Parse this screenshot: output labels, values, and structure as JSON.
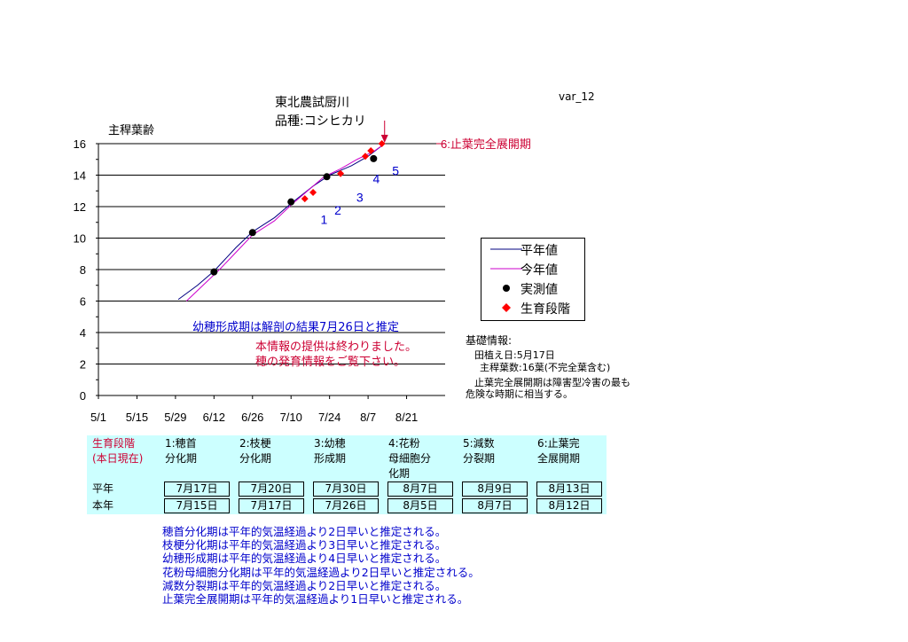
{
  "header": {
    "title_line1": "東北農試厨川",
    "title_line2": "品種:コシヒカリ",
    "var_label": "var_12",
    "y_axis_title": "主稈葉齢"
  },
  "chart_data": {
    "type": "line",
    "y_axis_title": "主稈葉齢",
    "ylim": [
      0,
      16
    ],
    "yticks": [
      0,
      2,
      4,
      6,
      8,
      10,
      12,
      14,
      16
    ],
    "ytick_labels": [
      "0",
      "2",
      "4",
      "6",
      "8",
      "10",
      "12",
      "14",
      "16"
    ],
    "x_tick_labels": [
      "5/1",
      "5/15",
      "5/29",
      "6/12",
      "6/26",
      "7/10",
      "7/24",
      "8/7",
      "8/21"
    ],
    "x_tick_days": [
      0,
      14,
      28,
      42,
      56,
      70,
      84,
      98,
      112
    ],
    "xlim": [
      0,
      126
    ],
    "grid": true,
    "series": [
      {
        "name": "平年値",
        "color": "#000080",
        "style": "line",
        "x": [
          29,
          36,
          42,
          50,
          56,
          64,
          70,
          78,
          84,
          92,
          98,
          104
        ],
        "y": [
          6.1,
          7.0,
          7.9,
          9.4,
          10.4,
          11.3,
          12.2,
          13.3,
          14.0,
          14.6,
          15.2,
          16.0
        ]
      },
      {
        "name": "今年値",
        "color": "#cc00cc",
        "style": "line",
        "x": [
          32,
          38,
          44,
          50,
          56,
          64,
          70,
          76,
          82,
          88,
          94,
          100,
          104
        ],
        "y": [
          6.0,
          7.0,
          8.0,
          9.1,
          10.2,
          11.1,
          12.1,
          13.0,
          13.9,
          14.4,
          15.0,
          15.5,
          16.0
        ]
      },
      {
        "name": "実測値",
        "color": "#000000",
        "style": "marker-circle",
        "x": [
          42,
          56,
          70,
          83,
          100
        ],
        "y": [
          7.85,
          10.35,
          12.3,
          13.9,
          15.05
        ]
      },
      {
        "name": "生育段階",
        "color": "#ff0000",
        "style": "marker-diamond",
        "x": [
          75,
          78,
          88,
          97,
          99,
          103
        ],
        "y": [
          12.5,
          12.9,
          14.1,
          15.2,
          15.55,
          16.0
        ]
      }
    ],
    "stage_numbers": [
      {
        "label": "1",
        "x": 82,
        "y": 10.9
      },
      {
        "label": "2",
        "x": 87,
        "y": 11.5
      },
      {
        "label": "3",
        "x": 95,
        "y": 12.3
      },
      {
        "label": "4",
        "x": 101,
        "y": 13.5
      },
      {
        "label": "5",
        "x": 108,
        "y": 14.0
      }
    ],
    "stage6_label": "6:止葉完全展開期",
    "stage6_color": "#cc0033",
    "stage_number_color": "#0000cc"
  },
  "legend": {
    "items": [
      {
        "label": "平年値",
        "color": "#000080",
        "kind": "line"
      },
      {
        "label": "今年値",
        "color": "#cc00cc",
        "kind": "line"
      },
      {
        "label": "実測値",
        "color": "#000000",
        "kind": "circle"
      },
      {
        "label": "生育段階",
        "color": "#ff0000",
        "kind": "diamond"
      }
    ]
  },
  "info": {
    "title": "基礎情報:",
    "line1": "田植え日:5月17日",
    "line2": "主稈葉数:16葉(不完全葉含む)",
    "line3": "止葉完全展開期は障害型冷害の最も",
    "line4": "危険な時期に相当する。"
  },
  "annotations": {
    "line1": "幼穂形成期は解剖の結果7月26日と推定",
    "line2": "本情報の提供は終わりました。",
    "line3": "穂の発育情報をご覧下さい。"
  },
  "table": {
    "corner_line1": "生育段階",
    "corner_line2": "(本日現在)",
    "headers": [
      {
        "line1": "1:穂首",
        "line2": "分化期",
        "line3": ""
      },
      {
        "line1": "2:枝梗",
        "line2": "分化期",
        "line3": ""
      },
      {
        "line1": "3:幼穂",
        "line2": "形成期",
        "line3": ""
      },
      {
        "line1": "4:花粉",
        "line2": "母細胞分",
        "line3": "化期"
      },
      {
        "line1": "5:減数",
        "line2": "分裂期",
        "line3": ""
      },
      {
        "line1": "6:止葉完",
        "line2": "全展開期",
        "line3": ""
      }
    ],
    "rows": [
      {
        "label": "平年",
        "values": [
          "7月17日",
          "7月20日",
          "7月30日",
          "8月7日",
          "8月9日",
          "8月13日"
        ]
      },
      {
        "label": "本年",
        "values": [
          "7月15日",
          "7月17日",
          "7月26日",
          "8月5日",
          "8月7日",
          "8月12日"
        ]
      }
    ]
  },
  "notes": [
    "穂首分化期は平年的気温経過より2日早いと推定される。",
    "枝梗分化期は平年的気温経過より3日早いと推定される。",
    "幼穂形成期は平年的気温経過より4日早いと推定される。",
    "花粉母細胞分化期は平年的気温経過より2日早いと推定される。",
    "減数分裂期は平年的気温経過より2日早いと推定される。",
    "止葉完全展開期は平年的気温経過より1日早いと推定される。"
  ]
}
